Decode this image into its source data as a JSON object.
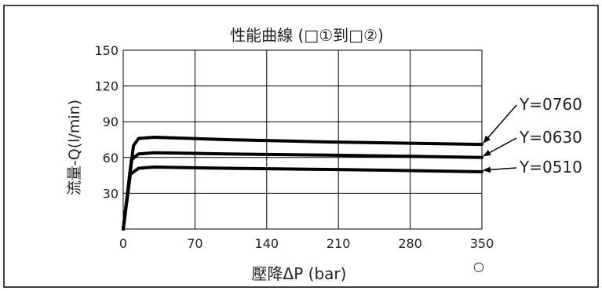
{
  "chart_data": {
    "type": "line",
    "title": "性能曲線 (□①到□②)",
    "xlabel": "壓降ΔP (bar)",
    "ylabel": "流量-Q(l/min)",
    "x_ticks": [
      0,
      70,
      140,
      210,
      280,
      350
    ],
    "y_ticks": [
      30,
      60,
      90,
      120,
      150
    ],
    "xlim": [
      0,
      350
    ],
    "ylim": [
      0,
      150
    ],
    "grid": true,
    "footnote_symbol": "○",
    "series": [
      {
        "name": "Y=0760",
        "points": [
          [
            0,
            0
          ],
          [
            10,
            70
          ],
          [
            15,
            76
          ],
          [
            30,
            77
          ],
          [
            100,
            75
          ],
          [
            200,
            73
          ],
          [
            280,
            72
          ],
          [
            350,
            71
          ]
        ]
      },
      {
        "name": "Y=0630",
        "points": [
          [
            0,
            0
          ],
          [
            8,
            58
          ],
          [
            15,
            63
          ],
          [
            30,
            64
          ],
          [
            100,
            63
          ],
          [
            200,
            62
          ],
          [
            280,
            61
          ],
          [
            350,
            60
          ]
        ]
      },
      {
        "name": "Y=0510",
        "points": [
          [
            0,
            0
          ],
          [
            7,
            46
          ],
          [
            15,
            51
          ],
          [
            30,
            52
          ],
          [
            100,
            51
          ],
          [
            200,
            50
          ],
          [
            280,
            49
          ],
          [
            350,
            48
          ]
        ]
      }
    ],
    "colors": {
      "line": "#000000",
      "grid": "#000000",
      "text": "#222222"
    }
  }
}
